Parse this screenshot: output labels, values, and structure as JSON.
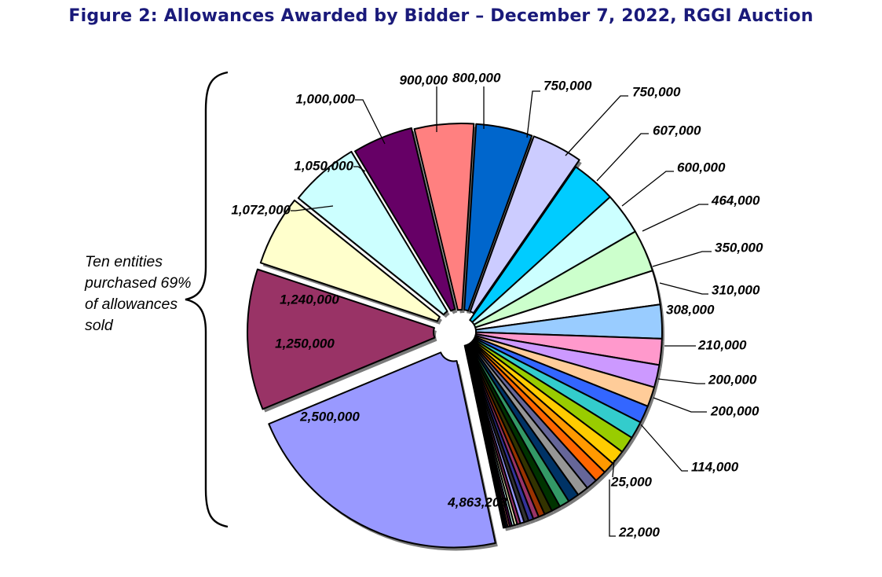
{
  "title": "Figure 2: Allowances Awarded by Bidder – December 7, 2022, RGGI Auction",
  "bracket_note": "Ten entities purchased 69% of allowances sold",
  "chart_data": {
    "type": "pie",
    "title": "Figure 2: Allowances Awarded by Bidder – December 7, 2022, RGGI Auction",
    "slices": [
      {
        "value": 4863203,
        "label": "4,863,203",
        "color": "#9999ff"
      },
      {
        "value": 2500000,
        "label": "2,500,000",
        "color": "#993366"
      },
      {
        "value": 1250000,
        "label": "1,250,000",
        "color": "#ffffcc"
      },
      {
        "value": 1240000,
        "label": "1,240,000",
        "color": "#ccffff"
      },
      {
        "value": 1072000,
        "label": "1,072,000",
        "color": "#660066"
      },
      {
        "value": 1050000,
        "label": "1,050,000",
        "color": "#ff8080"
      },
      {
        "value": 1000000,
        "label": "1,000,000",
        "color": "#0066cc"
      },
      {
        "value": 900000,
        "label": "900,000",
        "color": "#ccccff"
      },
      {
        "value": 800000,
        "label": "800,000",
        "color": "#00ccff"
      },
      {
        "value": 750000,
        "label": "750,000",
        "color": "#ccffff"
      },
      {
        "value": 750000,
        "label": "750,000",
        "color": "#ccffcc"
      },
      {
        "value": 607000,
        "label": "607,000",
        "color": "#ffffff"
      },
      {
        "value": 600000,
        "label": "600,000",
        "color": "#99ccff"
      },
      {
        "value": 464000,
        "label": "464,000",
        "color": "#ff99cc"
      },
      {
        "value": 400000,
        "label": "",
        "color": "#cc99ff"
      },
      {
        "value": 350000,
        "label": "350,000",
        "color": "#ffcc99"
      },
      {
        "value": 310000,
        "label": "310,000",
        "color": "#3366ff"
      },
      {
        "value": 308000,
        "label": "308,000",
        "color": "#33cccc"
      },
      {
        "value": 300000,
        "label": "",
        "color": "#99cc00"
      },
      {
        "value": 260000,
        "label": "",
        "color": "#ffcc00"
      },
      {
        "value": 210000,
        "label": "210,000",
        "color": "#ff9900"
      },
      {
        "value": 210000,
        "label": "",
        "color": "#ff6600"
      },
      {
        "value": 200000,
        "label": "200,000",
        "color": "#666699"
      },
      {
        "value": 200000,
        "label": "",
        "color": "#969696"
      },
      {
        "value": 200000,
        "label": "200,000",
        "color": "#003366"
      },
      {
        "value": 180000,
        "label": "",
        "color": "#339966"
      },
      {
        "value": 160000,
        "label": "",
        "color": "#003300"
      },
      {
        "value": 140000,
        "label": "",
        "color": "#333300"
      },
      {
        "value": 114000,
        "label": "114,000",
        "color": "#993300"
      },
      {
        "value": 100000,
        "label": "",
        "color": "#993366"
      },
      {
        "value": 90000,
        "label": "",
        "color": "#333399"
      },
      {
        "value": 80000,
        "label": "",
        "color": "#333333"
      },
      {
        "value": 70000,
        "label": "",
        "color": "#9999ff"
      },
      {
        "value": 60000,
        "label": "",
        "color": "#993366"
      },
      {
        "value": 50000,
        "label": "",
        "color": "#ffffcc"
      },
      {
        "value": 45000,
        "label": "",
        "color": "#ccffff"
      },
      {
        "value": 40000,
        "label": "",
        "color": "#660066"
      },
      {
        "value": 35000,
        "label": "",
        "color": "#ff8080"
      },
      {
        "value": 30000,
        "label": "",
        "color": "#0066cc"
      },
      {
        "value": 25000,
        "label": "25,000",
        "color": "#ccccff"
      },
      {
        "value": 22000,
        "label": "22,000",
        "color": "#000080"
      }
    ]
  }
}
